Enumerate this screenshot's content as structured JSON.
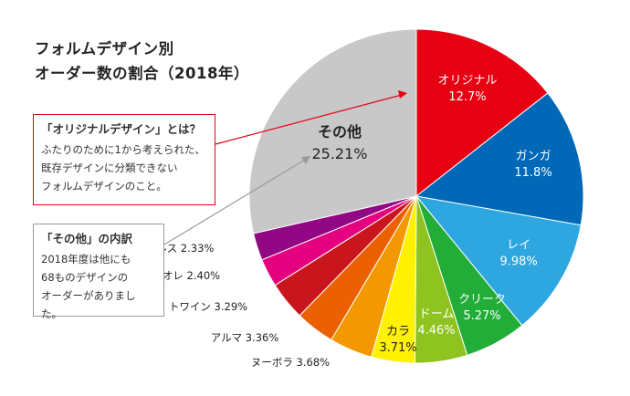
{
  "title": {
    "line1": "フォルムデザイン別",
    "line2": "オーダー数の割合（2018年）"
  },
  "box_original": {
    "heading": "「オリジナルデザイン」とは？",
    "lines": [
      "ふたりのために1から考えられた、",
      "既存デザインに分類できない",
      "フォルムデザインのこと。"
    ]
  },
  "box_other": {
    "heading": "「その他」の内訳",
    "lines": [
      "2018年度は他にも",
      "68ものデザインの",
      "オーダーがありました。"
    ]
  },
  "chart_data": {
    "type": "pie",
    "slices": [
      {
        "name": "オリジナル",
        "value": 12.7,
        "label": "12.7%",
        "color": "#e60012",
        "label_inside": true,
        "text_color": "#ffffff"
      },
      {
        "name": "ガンガ",
        "value": 11.8,
        "label": "11.8%",
        "color": "#0068b7",
        "label_inside": true,
        "text_color": "#ffffff"
      },
      {
        "name": "レイ",
        "value": 9.98,
        "label": "9.98%",
        "color": "#2ea7e0",
        "label_inside": true,
        "text_color": "#ffffff"
      },
      {
        "name": "クリーク",
        "value": 5.27,
        "label": "5.27%",
        "color": "#22ac38",
        "label_inside": true,
        "text_color": "#ffffff"
      },
      {
        "name": "ドーム",
        "value": 4.46,
        "label": "4.46%",
        "color": "#8fc31f",
        "label_inside": true,
        "text_color": "#ffffff"
      },
      {
        "name": "カラ",
        "value": 3.71,
        "label": "3.71%",
        "color": "#fff100",
        "label_inside": true,
        "text_color": "#222222"
      },
      {
        "name": "ヌーボラ",
        "value": 3.68,
        "label": "3.68%",
        "color": "#f39800",
        "label_inside": false,
        "text_color": "#222222"
      },
      {
        "name": "アルマ",
        "value": 3.36,
        "label": "3.36%",
        "color": "#eb6100",
        "label_inside": false,
        "text_color": "#222222"
      },
      {
        "name": "トワイン",
        "value": 3.29,
        "label": "3.29%",
        "color": "#c9161d",
        "label_inside": false,
        "text_color": "#222222"
      },
      {
        "name": "トリオレ",
        "value": 2.4,
        "label": "2.40%",
        "color": "#e4007f",
        "label_inside": false,
        "text_color": "#222222"
      },
      {
        "name": "パルス",
        "value": 2.33,
        "label": "2.33%",
        "color": "#920783",
        "label_inside": false,
        "text_color": "#222222"
      },
      {
        "name": "その他",
        "value": 25.21,
        "label": "25.21%",
        "color": "#c8c8c8",
        "label_inside": true,
        "text_color": "#222222"
      }
    ],
    "start": "top, clockwise",
    "connectors": [
      {
        "from": "「オリジナルデザイン」とは？",
        "to": "オリジナル",
        "color": "#e60012"
      },
      {
        "from": "「その他」の内訳",
        "to": "その他",
        "color": "#9a9a9a"
      }
    ]
  }
}
